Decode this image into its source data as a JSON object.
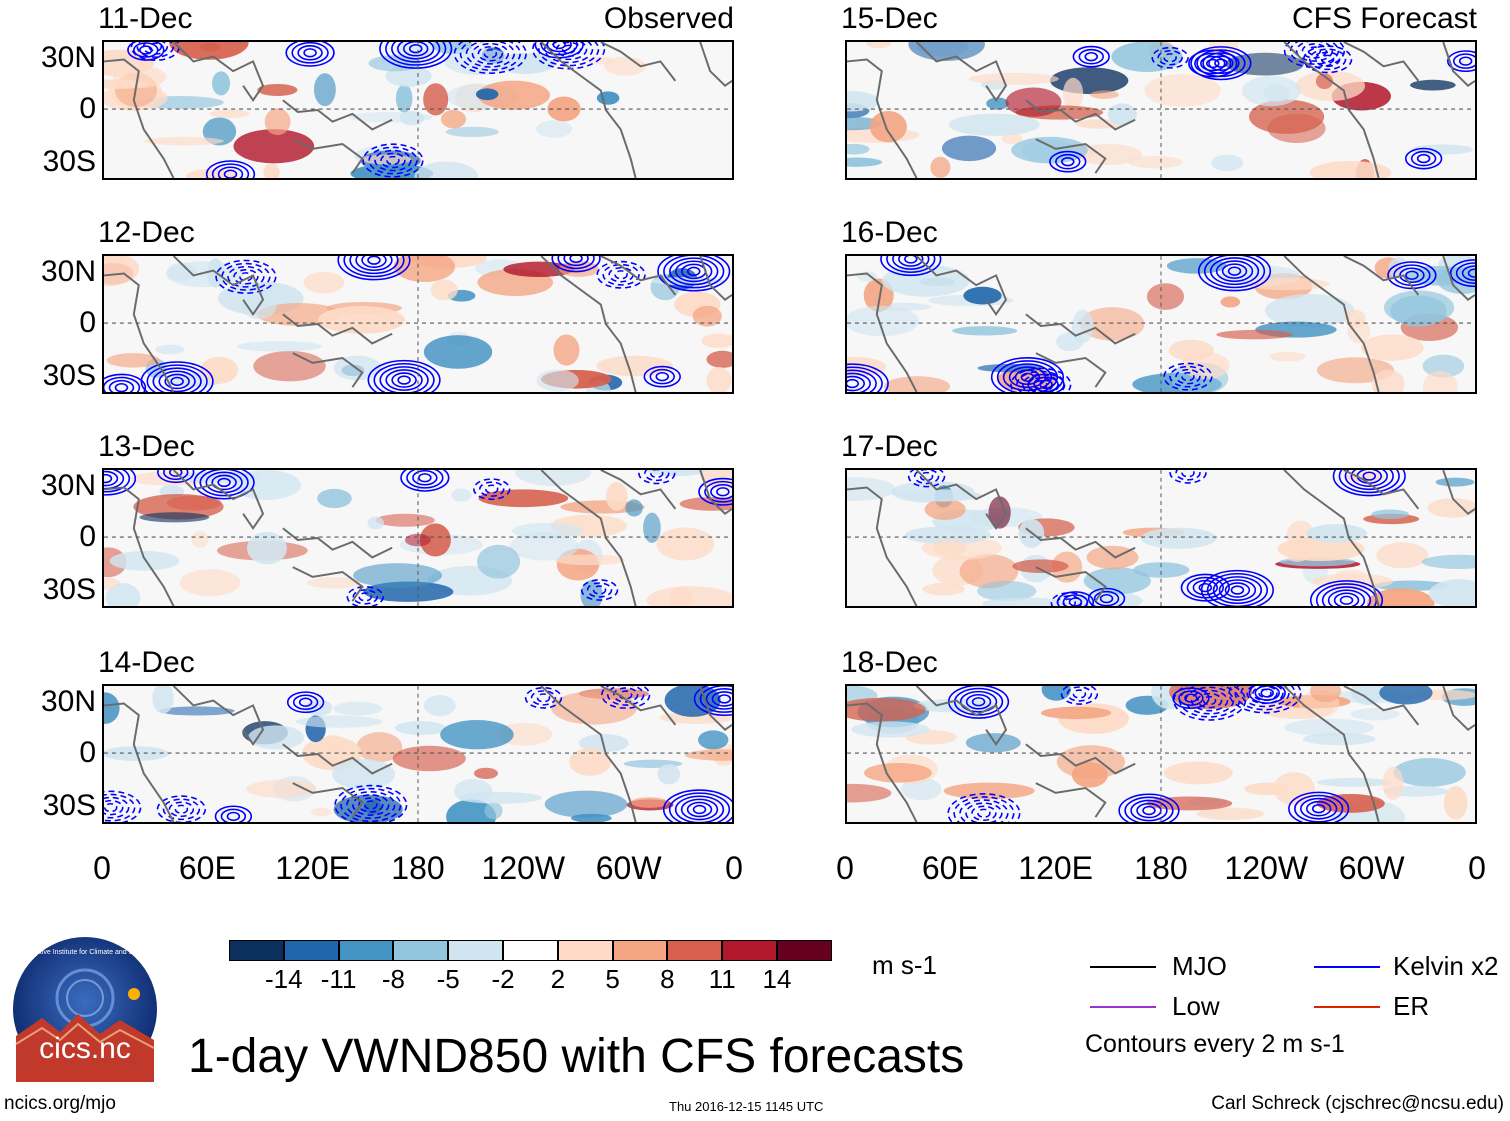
{
  "title": "1-day VWND850 with CFS forecasts",
  "observed_label": "Observed",
  "forecast_label": "CFS Forecast",
  "panels_left": [
    "11-Dec",
    "12-Dec",
    "13-Dec",
    "14-Dec"
  ],
  "panels_right": [
    "15-Dec",
    "16-Dec",
    "17-Dec",
    "18-Dec"
  ],
  "lat_labels": [
    "30N",
    "0",
    "30S"
  ],
  "lon_labels": [
    "0",
    "60E",
    "120E",
    "180",
    "120W",
    "60W",
    "0"
  ],
  "colorbar": {
    "unit": "m s-1",
    "ticks": [
      "-14",
      "-11",
      "-8",
      "-5",
      "-2",
      "2",
      "5",
      "8",
      "11",
      "14"
    ],
    "colors": [
      "#0b305e",
      "#2166ac",
      "#4393c3",
      "#92c5de",
      "#d1e5f0",
      "#ffffff",
      "#fddbc7",
      "#f4a582",
      "#d6604d",
      "#b2182b",
      "#67001f"
    ]
  },
  "legend": {
    "mjo": "MJO",
    "kelvin": "Kelvin x2",
    "low": "Low",
    "er": "ER",
    "contour_note": "Contours every 2 m s-1",
    "colors": {
      "mjo": "#000000",
      "kelvin": "#0000ff",
      "low": "#9933cc",
      "er": "#dd2200"
    }
  },
  "logo": {
    "main": "cics.nc",
    "ring": "Cooperative Institute for Climate and Satellites"
  },
  "footer": {
    "website": "ncics.org/mjo",
    "timestamp": "Thu 2016-12-15 1145 UTC",
    "author": "Carl Schreck (cjschrec@ncsu.edu)"
  },
  "chart_data": {
    "type": "heatmap",
    "variable": "850-hPa meridional wind (VWND850)",
    "unit": "m s-1",
    "xlim_lon": [
      0,
      360
    ],
    "ylim_lat": [
      -40,
      40
    ],
    "levels": [
      -14,
      -11,
      -8,
      -5,
      -2,
      2,
      5,
      8,
      11,
      14
    ],
    "observed_days": [
      "11-Dec",
      "12-Dec",
      "13-Dec",
      "14-Dec"
    ],
    "forecast_days": [
      "15-Dec",
      "16-Dec",
      "17-Dec",
      "18-Dec"
    ],
    "contours": "Kelvin x2 (blue), MJO (black), Low (purple), ER (red); every 2 m s-1"
  }
}
